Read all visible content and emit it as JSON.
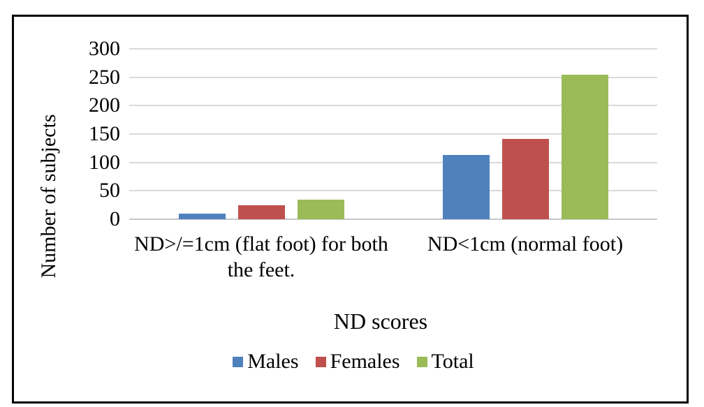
{
  "chart_data": {
    "type": "bar",
    "title": "",
    "categories": [
      "ND>/=1cm (flat foot) for both the feet.",
      "ND<1cm (normal foot)"
    ],
    "category_lines": [
      [
        "ND>/=1cm (flat foot) for both",
        "the feet."
      ],
      [
        "ND<1cm (normal foot)"
      ]
    ],
    "series": [
      {
        "name": "Males",
        "color": "#4F81BD",
        "values": [
          10,
          113
        ]
      },
      {
        "name": "Females",
        "color": "#C0504D",
        "values": [
          25,
          142
        ]
      },
      {
        "name": "Total",
        "color": "#9BBB59",
        "values": [
          35,
          255
        ]
      }
    ],
    "xlabel": "ND scores",
    "ylabel": "Number of subjects",
    "ylim": [
      0,
      300
    ],
    "yticks": [
      0,
      50,
      100,
      150,
      200,
      250,
      300
    ],
    "grid": true,
    "legend_position": "bottom",
    "gridline_color": "#D9D9D9",
    "axis_line_color": "#C6C6C6",
    "frame_color": "#000000",
    "background_color": "#FFFFFF"
  }
}
